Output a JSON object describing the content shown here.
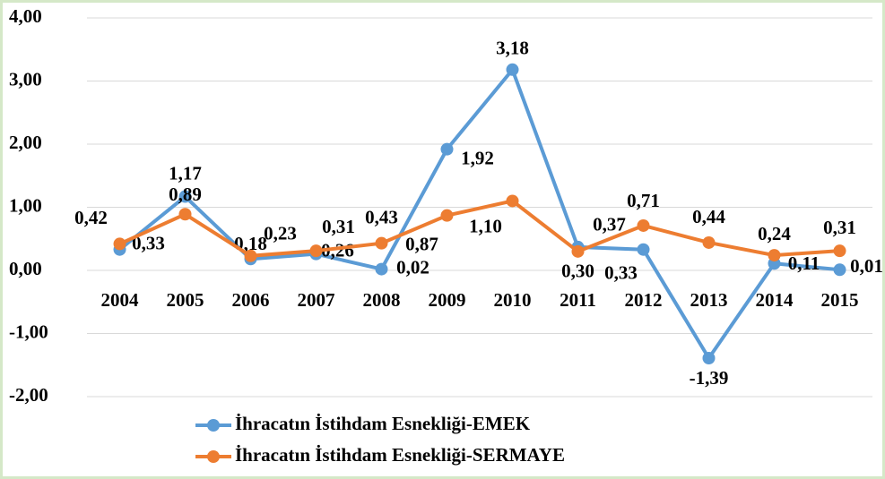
{
  "chart_data": {
    "type": "line",
    "categories": [
      "2004",
      "2005",
      "2006",
      "2007",
      "2008",
      "2009",
      "2010",
      "2011",
      "2012",
      "2013",
      "2014",
      "2015"
    ],
    "series": [
      {
        "name": "İhracatın İstihdam Esnekliği-EMEK",
        "color": "#5b9bd5",
        "values": [
          0.33,
          1.17,
          0.18,
          0.26,
          0.02,
          1.92,
          3.18,
          0.37,
          0.33,
          -1.39,
          0.11,
          0.01
        ],
        "value_labels": [
          "0,33",
          "1,17",
          "0,18",
          "0,26",
          "0,02",
          "1,92",
          "3,18",
          "0,37",
          "0,33",
          "-1,39",
          "0,11",
          "0,01"
        ]
      },
      {
        "name": "İhracatın İstihdam Esnekliği-SERMAYE",
        "color": "#ed7d31",
        "values": [
          0.42,
          0.89,
          0.23,
          0.31,
          0.43,
          0.87,
          1.1,
          0.3,
          0.71,
          0.44,
          0.24,
          0.31
        ],
        "value_labels": [
          "0,42",
          "0,89",
          "0,23",
          "0,31",
          "0,43",
          "0,87",
          "1,10",
          "0,30",
          "0,71",
          "0,44",
          "0,24",
          "0,31"
        ]
      }
    ],
    "ylim": [
      -2,
      4
    ],
    "yticks": [
      {
        "value": -2,
        "label": "-2,00"
      },
      {
        "value": -1,
        "label": "-1,00"
      },
      {
        "value": 0,
        "label": "0,00"
      },
      {
        "value": 1,
        "label": "1,00"
      },
      {
        "value": 2,
        "label": "2,00"
      },
      {
        "value": 3,
        "label": "3,00"
      },
      {
        "value": 4,
        "label": "4,00"
      }
    ],
    "grid": true,
    "legend": "bottom"
  }
}
